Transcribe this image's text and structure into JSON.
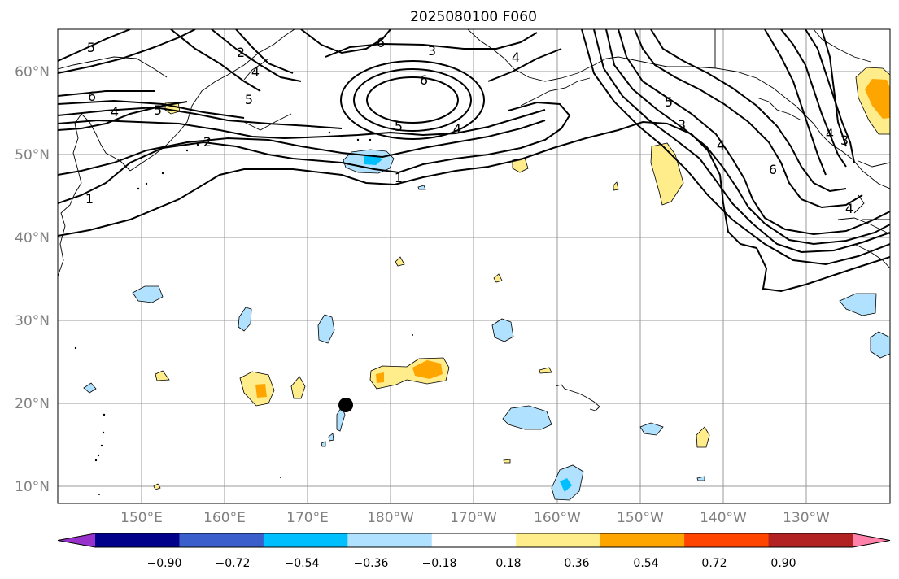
{
  "title": "2025080100 F060",
  "lat_labels": [
    "60°N",
    "50°N",
    "40°N",
    "30°N",
    "20°N",
    "10°N"
  ],
  "lon_labels": [
    "150°E",
    "160°E",
    "170°E",
    "180°W",
    "170°W",
    "160°W",
    "150°W",
    "140°W",
    "130°W"
  ],
  "contour_labels": [
    "5",
    "3",
    "6",
    "5",
    "4",
    "2",
    "6",
    "4",
    "5",
    "5",
    "6",
    "1",
    "2",
    "1",
    "5",
    "3",
    "4",
    "6",
    "4",
    "3",
    "4",
    "4",
    "4"
  ],
  "colorbar": {
    "tick_labels": [
      "−0.90",
      "−0.72",
      "−0.54",
      "−0.36",
      "−0.18",
      "0.18",
      "0.36",
      "0.54",
      "0.72",
      "0.90"
    ],
    "colors": [
      "#9932cc",
      "#00008b",
      "#3a5fcd",
      "#00bfff",
      "#b0e2ff",
      "#ffffff",
      "#ffec8b",
      "#ffa500",
      "#ff4500",
      "#b22222",
      "#ff82ab"
    ]
  },
  "marker_color": "#000000"
}
